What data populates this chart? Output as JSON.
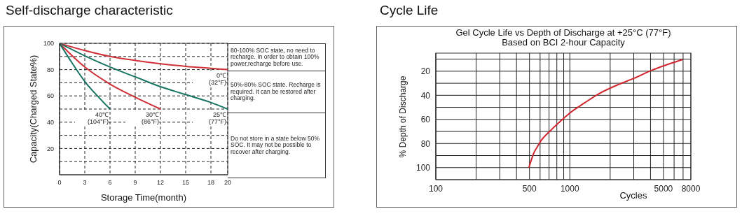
{
  "chart_data": [
    {
      "type": "line",
      "title": "Self-discharge characteristic",
      "xlabel": "Storage Time(month)",
      "ylabel": "Capacity(Charged State%)",
      "xlim": [
        0,
        20
      ],
      "xticks": [
        0,
        3,
        6,
        9,
        12,
        15,
        18,
        20
      ],
      "ylim": [
        0,
        100
      ],
      "yticks": [
        {
          "value": 10,
          "label": null
        },
        20,
        {
          "value": 30,
          "label": null
        },
        40,
        {
          "value": 50,
          "label": null
        },
        60,
        {
          "value": 70,
          "label": null
        },
        80,
        {
          "value": 90,
          "label": null
        },
        100
      ],
      "grid": true,
      "marker": "none",
      "line_style": "solid",
      "series": [
        {
          "name": "0℃\n(32°F)",
          "color": "#cf3038",
          "x": [
            0,
            3,
            6,
            9,
            12,
            15,
            18,
            20
          ],
          "values": [
            100,
            94.5,
            90,
            87,
            84.5,
            82.5,
            81,
            80
          ]
        },
        {
          "name": "25℃\n(77°F)",
          "color": "#157462",
          "x": [
            0,
            3,
            6,
            9,
            12,
            15,
            18,
            20
          ],
          "values": [
            100,
            90.5,
            82,
            74.5,
            67,
            61,
            55,
            50
          ]
        },
        {
          "name": "30℃\n(86°F)",
          "color": "#cf3038",
          "x": [
            0,
            3,
            6,
            9,
            12
          ],
          "values": [
            100,
            82,
            69,
            59,
            50
          ]
        },
        {
          "name": "40℃\n(104°F)",
          "color": "#157462",
          "x": [
            0,
            1.5,
            3,
            4.5,
            6
          ],
          "values": [
            100,
            85,
            71,
            60,
            50
          ]
        }
      ],
      "annotations": [
        "80-100% SOC state,  no need to recharge. In order to obtain 100% power,recharge before use.",
        "50%-80% SOC state. Recharge is required. It can be restored after charging.",
        "Do not store in a state below 50% SOC. It may not be  possible to recover after charging."
      ]
    },
    {
      "type": "line",
      "title": "Cycle Life",
      "subtitle": "Gel Cycle Life vs Depth of Discharge at +25°C (77°F)\nBased on BCI 2-hour Capacity",
      "xlabel": "Cycles",
      "ylabel": "% Depth of Discharge",
      "log": "x",
      "xlim": [
        100,
        8000
      ],
      "xticks": [
        100,
        {
          "value": 200,
          "label": null
        },
        {
          "value": 300,
          "label": null
        },
        {
          "value": 400,
          "label": null
        },
        500,
        {
          "value": 600,
          "label": null
        },
        {
          "value": 700,
          "label": null
        },
        {
          "value": 800,
          "label": null
        },
        {
          "value": 900,
          "label": null
        },
        1000,
        {
          "value": 2000,
          "label": null
        },
        {
          "value": 3000,
          "label": null
        },
        {
          "value": 4000,
          "label": null
        },
        5000,
        {
          "value": 6000,
          "label": null
        },
        {
          "value": 7000,
          "label": null
        },
        8000
      ],
      "ylim": [
        110,
        5
      ],
      "yticks": [
        {
          "value": 10,
          "label": null
        },
        20,
        {
          "value": 30,
          "label": null
        },
        40,
        {
          "value": 50,
          "label": null
        },
        60,
        {
          "value": 70,
          "label": null
        },
        80,
        {
          "value": 90,
          "label": null
        },
        100
      ],
      "grid": true,
      "marker": "none",
      "line_style": "solid",
      "series": [
        {
          "color": "#d0262e",
          "x": [
            495,
            515,
            538,
            570,
            607,
            714,
            912,
            1000,
            1300,
            1607,
            2311,
            3000,
            4130,
            5500,
            6920
          ],
          "values": [
            100,
            94,
            88,
            83,
            78,
            69.5,
            58.5,
            54.7,
            46,
            39.4,
            31,
            26,
            19,
            14,
            10.3
          ]
        }
      ]
    }
  ]
}
